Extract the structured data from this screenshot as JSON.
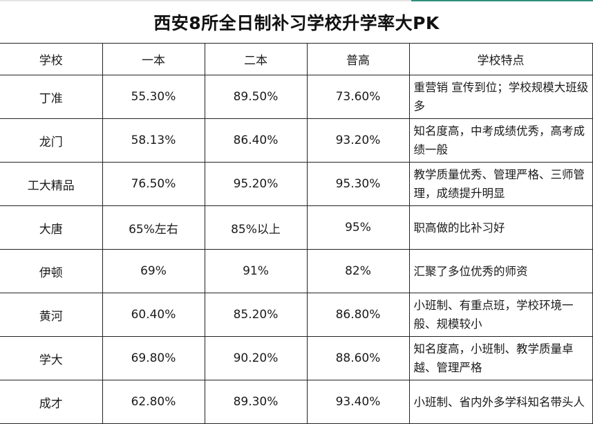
{
  "title": "西安8所全日制补习学校升学率大PK",
  "colors": {
    "border": "#222222",
    "accent_line": "#2f8f7b",
    "text": "#1a1a1a"
  },
  "table": {
    "headers": [
      "学校",
      "一本",
      "二本",
      "普高",
      "学校特点"
    ],
    "rows": [
      {
        "school": "丁准",
        "yiben": "55.30%",
        "erben": "89.50%",
        "pugao": "73.60%",
        "feature": "重营销 宣传到位；学校规模大班级多"
      },
      {
        "school": "龙门",
        "yiben": "58.13%",
        "erben": "86.40%",
        "pugao": "93.20%",
        "feature": "知名度高，中考成绩优秀，高考成绩一般"
      },
      {
        "school": "工大精品",
        "yiben": "76.50%",
        "erben": "95.20%",
        "pugao": "95.30%",
        "feature": "教学质量优秀、管理严格、三师管理，成绩提升明显"
      },
      {
        "school": "大唐",
        "yiben": "65%左右",
        "erben": "85%以上",
        "pugao": "95%",
        "feature": "职高做的比补习好"
      },
      {
        "school": "伊顿",
        "yiben": "69%",
        "erben": "91%",
        "pugao": "82%",
        "feature": "汇聚了多位优秀的师资"
      },
      {
        "school": "黄河",
        "yiben": "60.40%",
        "erben": "85.20%",
        "pugao": "86.80%",
        "feature": "小班制、有重点班，学校环境一般、规模较小"
      },
      {
        "school": "学大",
        "yiben": "69.80%",
        "erben": "90.20%",
        "pugao": "88.60%",
        "feature": "知名度高，小班制、教学质量卓越、管理严格"
      },
      {
        "school": "成才",
        "yiben": "62.80%",
        "erben": "89.30%",
        "pugao": "93.40%",
        "feature": "小班制、省内外多学科知名带头人"
      }
    ]
  }
}
